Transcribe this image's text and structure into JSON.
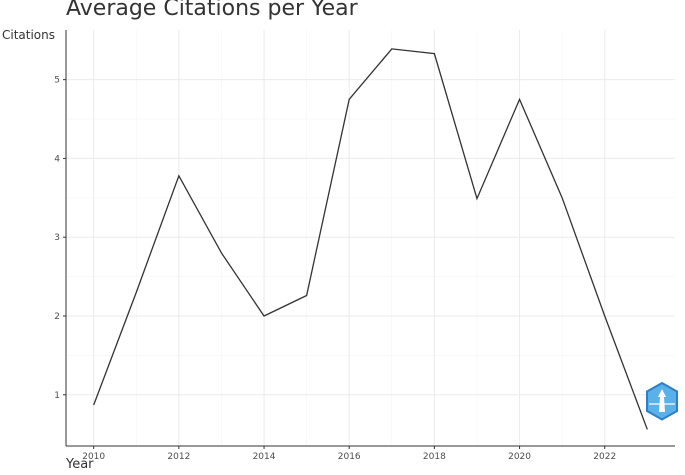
{
  "chart_data": {
    "type": "line",
    "title": "Average Citations per Year",
    "xlabel": "Year",
    "ylabel": "Citations",
    "x": [
      2010,
      2011,
      2012,
      2013,
      2014,
      2015,
      2016,
      2017,
      2018,
      2019,
      2020,
      2021,
      2022,
      2023
    ],
    "series": [
      {
        "values": [
          0.87,
          2.3,
          3.78,
          2.8,
          2.0,
          2.26,
          4.75,
          5.39,
          5.33,
          3.49,
          4.75,
          3.5,
          2.0,
          0.56
        ]
      }
    ],
    "xlim": [
      2009.35,
      2023.65
    ],
    "ylim": [
      0.35,
      5.63
    ],
    "xticks": [
      2010,
      2012,
      2014,
      2016,
      2018,
      2020,
      2022
    ],
    "xtick_labels": [
      "2010",
      "2012",
      "2014",
      "2016",
      "2018",
      "2020",
      "2022"
    ],
    "yticks": [
      1,
      2,
      3,
      4,
      5
    ],
    "ytick_labels": [
      "1",
      "2",
      "3",
      "4",
      "5"
    ],
    "grid": true,
    "line_color": "#333333"
  }
}
